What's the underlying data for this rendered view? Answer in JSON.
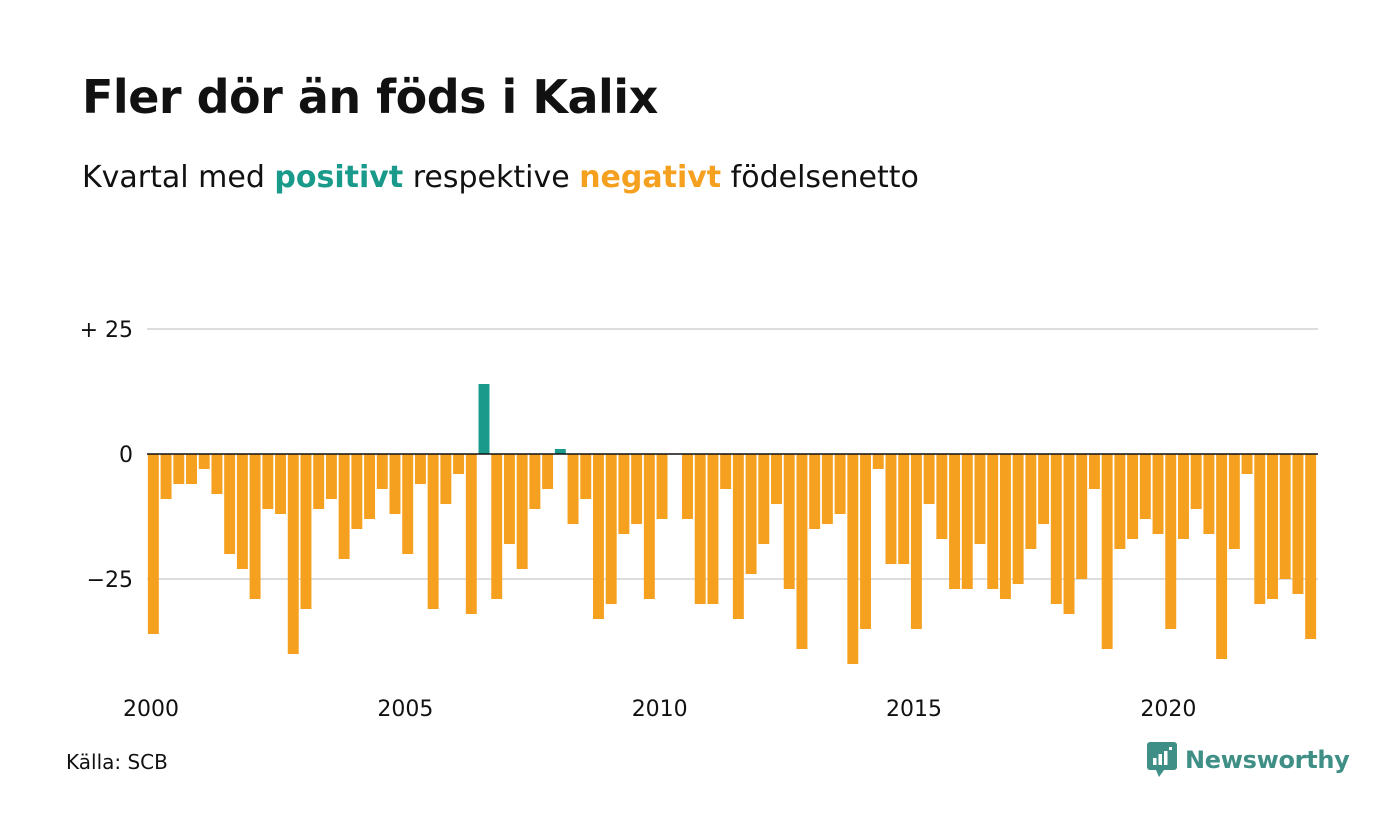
{
  "title": "Fler dör än föds i Kalix",
  "subtitle": {
    "before": "Kvartal med ",
    "positive_word": "positivt",
    "middle": " respektive ",
    "negative_word": "negativt",
    "after": " födelsenetto"
  },
  "colors": {
    "positive": "#1a9a8a",
    "negative": "#f5a01f",
    "grid": "#dddddd",
    "axis": "#111111",
    "brand": "#3f8f86"
  },
  "source": "Källa: SCB",
  "brand": {
    "name": "Newsworthy",
    "icon": "newsworthy-logo-icon"
  },
  "chart_data": {
    "type": "bar",
    "x_unit": "quarter",
    "start": "2000Q1",
    "xticks": [
      {
        "label": "2000",
        "index": 0
      },
      {
        "label": "2005",
        "index": 20
      },
      {
        "label": "2010",
        "index": 40
      },
      {
        "label": "2015",
        "index": 60
      },
      {
        "label": "2020",
        "index": 80
      }
    ],
    "yticks": [
      {
        "value": 25,
        "label": "+ 25"
      },
      {
        "value": 0,
        "label": "0"
      },
      {
        "value": -25,
        "label": "−25"
      }
    ],
    "ylim": [
      -43,
      25
    ],
    "grid": true,
    "values": [
      -36,
      -9,
      -6,
      -6,
      -3,
      -8,
      -20,
      -23,
      -29,
      -11,
      -12,
      -40,
      -31,
      -11,
      -9,
      -21,
      -15,
      -13,
      -7,
      -12,
      -20,
      -6,
      -31,
      -10,
      -4,
      -32,
      14,
      -29,
      -18,
      -23,
      -11,
      -7,
      1,
      -14,
      -9,
      -33,
      -30,
      -16,
      -14,
      -29,
      -13,
      0,
      -13,
      -30,
      -30,
      -7,
      -33,
      -24,
      -18,
      -10,
      -27,
      -39,
      -15,
      -14,
      -12,
      -42,
      -35,
      -3,
      -22,
      -22,
      -35,
      -10,
      -17,
      -27,
      -27,
      -18,
      -27,
      -29,
      -26,
      -19,
      -14,
      -30,
      -32,
      -25,
      -7,
      -39,
      -19,
      -17,
      -13,
      -16,
      -35,
      -17,
      -11,
      -16,
      -41,
      -19,
      -4,
      -30,
      -29,
      -25,
      -28,
      -37
    ]
  }
}
